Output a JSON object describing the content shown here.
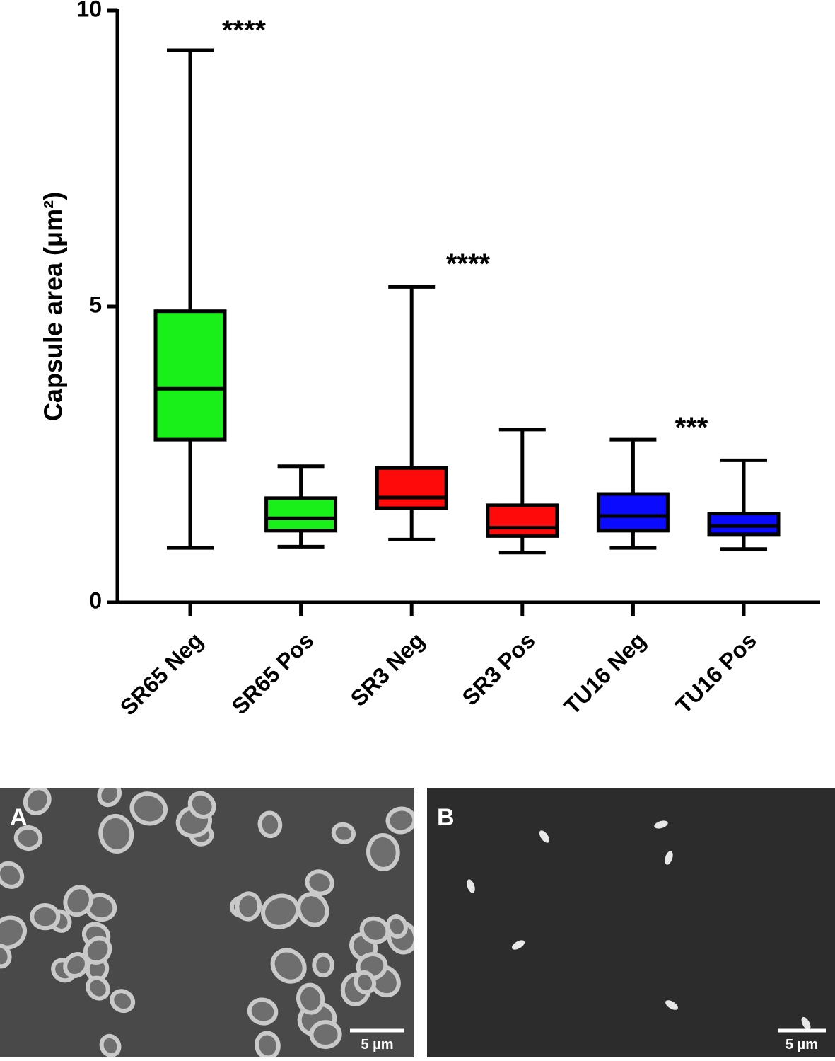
{
  "chart_data": {
    "type": "box",
    "y_label": "Capsule area (μm²)",
    "categories": [
      "SR65 Neg",
      "SR65 Pos",
      "SR3 Neg",
      "SR3 Pos",
      "TU16 Neg",
      "TU16 Pos"
    ],
    "colors": [
      "#19f019",
      "#19f019",
      "#ff0a0a",
      "#ff0a0a",
      "#0a0aff",
      "#0a0aff"
    ],
    "stats": {
      "min": [
        0.92,
        0.94,
        1.06,
        0.84,
        0.92,
        0.9
      ],
      "q1": [
        2.75,
        1.21,
        1.59,
        1.12,
        1.21,
        1.15
      ],
      "median": [
        3.61,
        1.42,
        1.77,
        1.26,
        1.46,
        1.29
      ],
      "q3": [
        4.92,
        1.76,
        2.27,
        1.64,
        1.83,
        1.5
      ],
      "max": [
        9.33,
        2.3,
        5.33,
        2.92,
        2.75,
        2.4
      ]
    },
    "annotations": [
      "****",
      "****",
      "***"
    ],
    "ylim": [
      0,
      10
    ],
    "yticks": [
      0,
      5,
      10
    ]
  },
  "panels": [
    {
      "label": "A",
      "scale_bar": "5 µm"
    },
    {
      "label": "B",
      "scale_bar": "5 µm"
    }
  ]
}
